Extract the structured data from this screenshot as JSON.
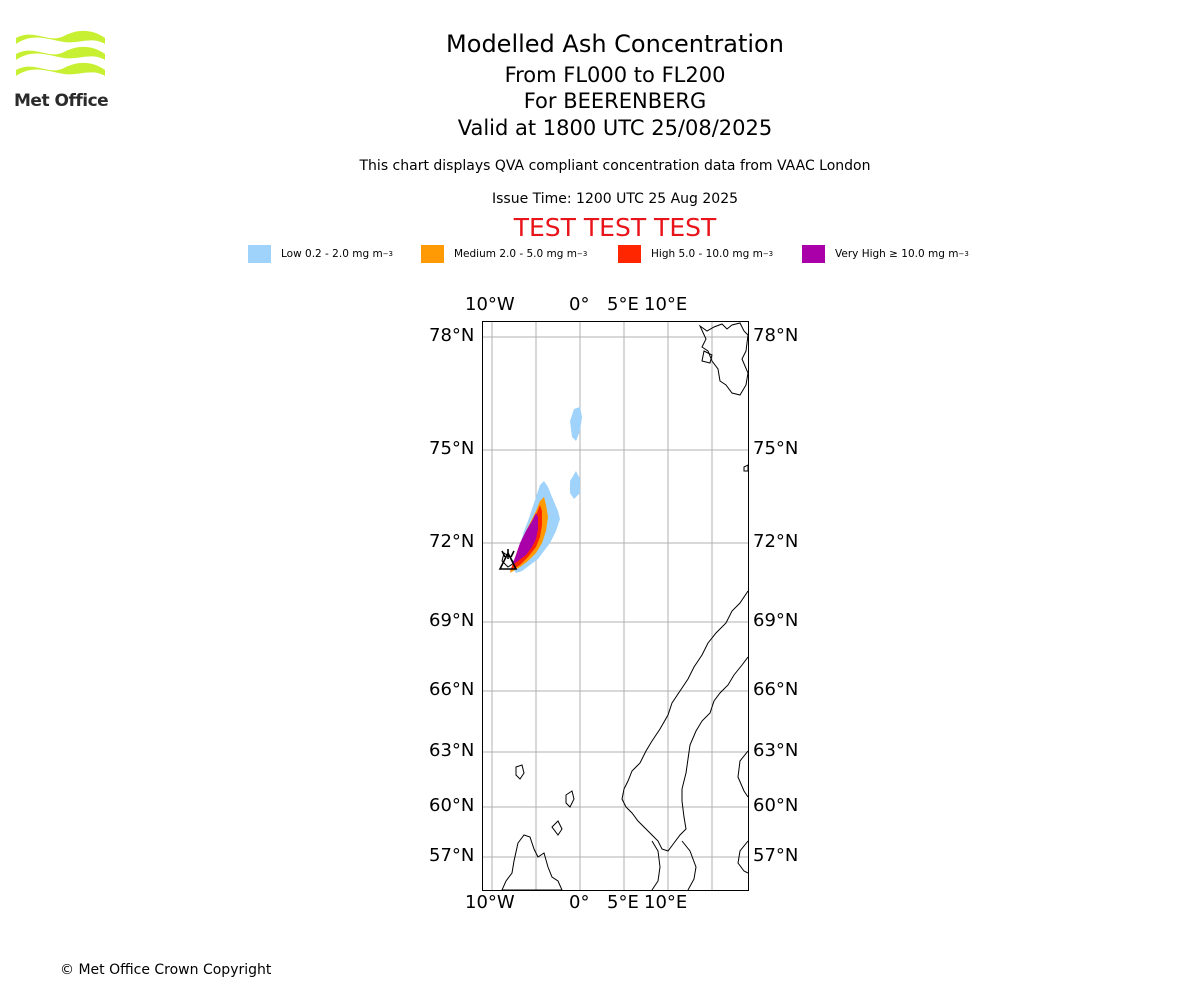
{
  "logo": {
    "text": "Met Office",
    "color": "#c8f032"
  },
  "header": {
    "title": "Modelled Ash Concentration",
    "levels": "From FL000 to FL200",
    "volcano": "For BEERENBERG",
    "valid": "Valid at 1800 UTC 25/08/2025",
    "subtitle": "This chart displays QVA compliant concentration data from VAAC London",
    "issue": "Issue Time: 1200 UTC 25 Aug 2025",
    "test": "TEST TEST TEST"
  },
  "legend": [
    {
      "label": "Low 0.2 - 2.0 mg m",
      "sup": "−3",
      "color": "#9fd3fb"
    },
    {
      "label": "Medium 2.0 - 5.0 mg m",
      "sup": "−3",
      "color": "#ff9a05"
    },
    {
      "label": "High 5.0 - 10.0 mg m",
      "sup": "−3",
      "color": "#ff2600"
    },
    {
      "label": "Very High ≥ 10.0 mg m",
      "sup": "−3",
      "color": "#aa00aa"
    }
  ],
  "map": {
    "lon_labels": [
      "10°W",
      "0°",
      "5°E",
      "10°E"
    ],
    "lat_labels": [
      "78°N",
      "75°N",
      "72°N",
      "69°N",
      "66°N",
      "63°N",
      "60°N",
      "57°N"
    ],
    "volcano_icon": "volcano-triangle-icon"
  },
  "footer": {
    "copyright": "© Met Office Crown Copyright"
  }
}
